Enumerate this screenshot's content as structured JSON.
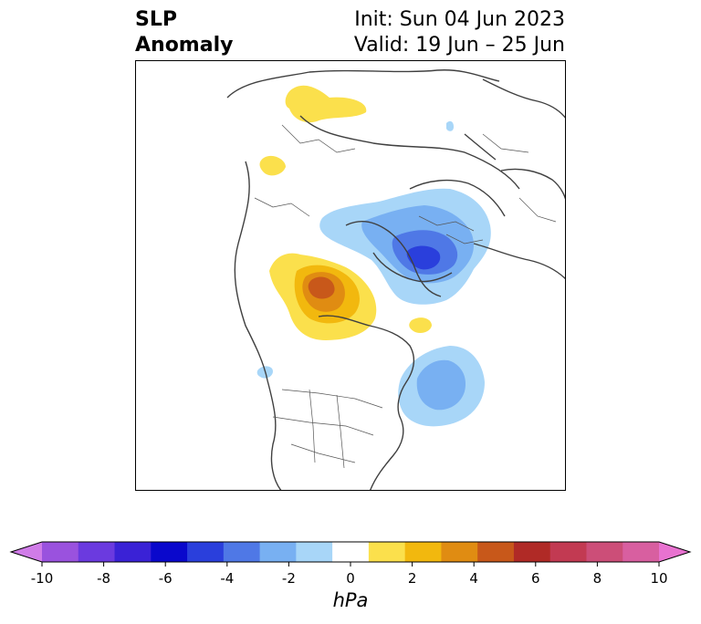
{
  "title": {
    "line1": "SLP",
    "line2": "Anomaly",
    "init": "Init: Sun 04 Jun 2023",
    "valid": "Valid: 19 Jun – 25 Jun"
  },
  "colorbar": {
    "unit": "hPa",
    "ticks": [
      "-10",
      "-8",
      "-6",
      "-4",
      "-2",
      "0",
      "2",
      "4",
      "6",
      "8",
      "10"
    ],
    "colors": [
      "#d07ce8",
      "#9a52de",
      "#6b3adf",
      "#3a22d6",
      "#0a08cc",
      "#2a3fdc",
      "#4f78e6",
      "#78b0f2",
      "#a8d6f8",
      "#ffffff",
      "#fbe04c",
      "#f2b80e",
      "#e08c12",
      "#c8581a",
      "#b02a26",
      "#c23a52",
      "#cc4e78",
      "#d85fa0",
      "#e872d0"
    ]
  },
  "map": {
    "projection": "north-polar-stereographic",
    "anomalies": [
      {
        "name": "positive-anomaly-east-siberia",
        "level": 1
      },
      {
        "name": "positive-anomaly-kamchatka",
        "level": 1
      },
      {
        "name": "positive-anomaly-alaska-yukon",
        "level": 4
      },
      {
        "name": "positive-anomaly-greenland-south",
        "level": 1
      },
      {
        "name": "negative-anomaly-scandinavia-europe",
        "level": -4
      },
      {
        "name": "negative-anomaly-north-atlantic",
        "level": -2
      },
      {
        "name": "negative-anomaly-pacific",
        "level": -1
      }
    ]
  }
}
